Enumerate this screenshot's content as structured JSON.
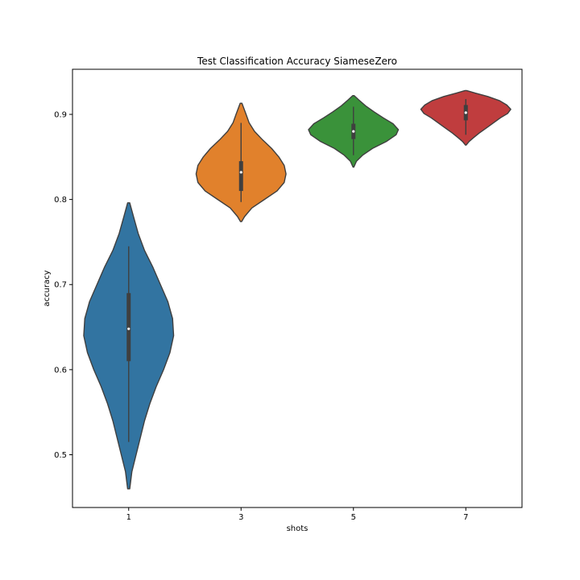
{
  "chart_data": {
    "type": "violin",
    "title": "Test Classification Accuracy SiameseZero",
    "xlabel": "shots",
    "ylabel": "accuracy",
    "categories": [
      "1",
      "3",
      "5",
      "7"
    ],
    "yticks": [
      "0.5",
      "0.6",
      "0.7",
      "0.8",
      "0.9"
    ],
    "ylim": [
      0.438,
      0.953
    ],
    "grid": false,
    "series": [
      {
        "category": "1",
        "color": "#3274a1",
        "min": 0.46,
        "q1": 0.61,
        "median": 0.648,
        "q3": 0.69,
        "max": 0.796,
        "whisker_low": 0.515,
        "whisker_high": 0.745,
        "density": [
          [
            0.46,
            0.002
          ],
          [
            0.48,
            0.006
          ],
          [
            0.5,
            0.014
          ],
          [
            0.52,
            0.022
          ],
          [
            0.54,
            0.03
          ],
          [
            0.56,
            0.04
          ],
          [
            0.58,
            0.052
          ],
          [
            0.6,
            0.066
          ],
          [
            0.62,
            0.078
          ],
          [
            0.64,
            0.085
          ],
          [
            0.66,
            0.083
          ],
          [
            0.68,
            0.074
          ],
          [
            0.7,
            0.06
          ],
          [
            0.72,
            0.046
          ],
          [
            0.74,
            0.03
          ],
          [
            0.76,
            0.018
          ],
          [
            0.78,
            0.009
          ],
          [
            0.796,
            0.002
          ]
        ]
      },
      {
        "category": "3",
        "color": "#e1812c",
        "min": 0.774,
        "q1": 0.81,
        "median": 0.832,
        "q3": 0.845,
        "max": 0.913,
        "whisker_low": 0.797,
        "whisker_high": 0.89,
        "density": [
          [
            0.774,
            0.003
          ],
          [
            0.78,
            0.02
          ],
          [
            0.79,
            0.06
          ],
          [
            0.8,
            0.13
          ],
          [
            0.81,
            0.2
          ],
          [
            0.82,
            0.24
          ],
          [
            0.83,
            0.25
          ],
          [
            0.84,
            0.24
          ],
          [
            0.85,
            0.21
          ],
          [
            0.86,
            0.17
          ],
          [
            0.87,
            0.12
          ],
          [
            0.88,
            0.075
          ],
          [
            0.89,
            0.045
          ],
          [
            0.9,
            0.028
          ],
          [
            0.913,
            0.005
          ]
        ]
      },
      {
        "category": "5",
        "color": "#3a923a",
        "min": 0.838,
        "q1": 0.871,
        "median": 0.88,
        "q3": 0.889,
        "max": 0.922,
        "whisker_low": 0.852,
        "whisker_high": 0.909,
        "density": [
          [
            0.838,
            0.005
          ],
          [
            0.845,
            0.04
          ],
          [
            0.852,
            0.12
          ],
          [
            0.86,
            0.25
          ],
          [
            0.868,
            0.43
          ],
          [
            0.876,
            0.56
          ],
          [
            0.882,
            0.59
          ],
          [
            0.889,
            0.52
          ],
          [
            0.896,
            0.39
          ],
          [
            0.903,
            0.27
          ],
          [
            0.91,
            0.16
          ],
          [
            0.917,
            0.07
          ],
          [
            0.922,
            0.01
          ]
        ]
      },
      {
        "category": "7",
        "color": "#c03d3e",
        "min": 0.864,
        "q1": 0.893,
        "median": 0.902,
        "q3": 0.911,
        "max": 0.928,
        "whisker_low": 0.876,
        "whisker_high": 0.918,
        "density": [
          [
            0.864,
            0.005
          ],
          [
            0.868,
            0.04
          ],
          [
            0.872,
            0.09
          ],
          [
            0.878,
            0.17
          ],
          [
            0.884,
            0.26
          ],
          [
            0.89,
            0.35
          ],
          [
            0.896,
            0.44
          ],
          [
            0.901,
            0.53
          ],
          [
            0.906,
            0.57
          ],
          [
            0.911,
            0.52
          ],
          [
            0.916,
            0.43
          ],
          [
            0.921,
            0.28
          ],
          [
            0.925,
            0.12
          ],
          [
            0.928,
            0.01
          ]
        ]
      }
    ]
  }
}
